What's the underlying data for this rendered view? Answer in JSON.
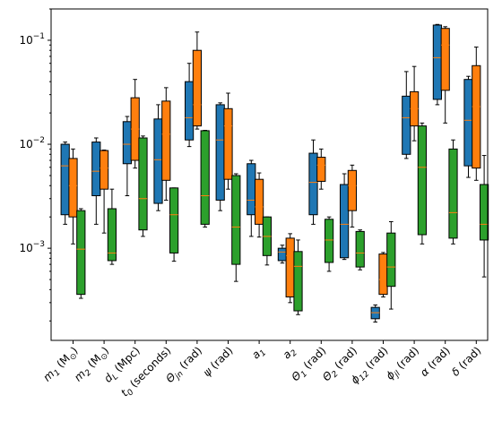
{
  "chart_data": {
    "type": "box",
    "yscale": "log",
    "ylim": [
      0.00013,
      0.2
    ],
    "y_tick_labels": [
      {
        "value": 0.001,
        "base": "10",
        "exp": "−3"
      },
      {
        "value": 0.01,
        "base": "10",
        "exp": "−2"
      },
      {
        "value": 0.1,
        "base": "10",
        "exp": "−1"
      }
    ],
    "categories": [
      {
        "main": "m",
        "sub": "1",
        "tail": " (M",
        "tailsub": "⊙",
        "end": ")"
      },
      {
        "main": "m",
        "sub": "2",
        "tail": " (M",
        "tailsub": "⊙",
        "end": ")"
      },
      {
        "main": "d",
        "sub": "L",
        "tail": " (Mpc)",
        "tailsub": "",
        "end": ""
      },
      {
        "main": "t",
        "sub": "0",
        "tail": " (seconds)",
        "tailsub": "",
        "end": ""
      },
      {
        "main": "Θ",
        "sub": "jn",
        "tail": " (rad)",
        "tailsub": "",
        "end": ""
      },
      {
        "main": "ψ",
        "sub": "",
        "tail": " (rad)",
        "tailsub": "",
        "end": ""
      },
      {
        "main": "a",
        "sub": "1",
        "tail": "",
        "tailsub": "",
        "end": ""
      },
      {
        "main": "a",
        "sub": "2",
        "tail": "",
        "tailsub": "",
        "end": ""
      },
      {
        "main": "Θ",
        "sub": "1",
        "tail": " (rad)",
        "tailsub": "",
        "end": ""
      },
      {
        "main": "Θ",
        "sub": "2",
        "tail": " (rad)",
        "tailsub": "",
        "end": ""
      },
      {
        "main": "ϕ",
        "sub": "12",
        "tail": " (rad)",
        "tailsub": "",
        "end": ""
      },
      {
        "main": "ϕ",
        "sub": "jl",
        "tail": " (rad)",
        "tailsub": "",
        "end": ""
      },
      {
        "main": "α",
        "sub": "",
        "tail": " (rad)",
        "tailsub": "",
        "end": ""
      },
      {
        "main": "δ",
        "sub": "",
        "tail": " (rad)",
        "tailsub": "",
        "end": ""
      }
    ],
    "series": [
      {
        "color": "#1f77b4",
        "boxes": [
          {
            "min": 0.0017,
            "q1": 0.0021,
            "median": 0.0062,
            "q3": 0.01,
            "max": 0.0105
          },
          {
            "min": 0.0017,
            "q1": 0.0032,
            "median": 0.0055,
            "q3": 0.0105,
            "max": 0.0115
          },
          {
            "min": 0.0032,
            "q1": 0.0065,
            "median": 0.01,
            "q3": 0.0165,
            "max": 0.0185
          },
          {
            "min": 0.0023,
            "q1": 0.0027,
            "median": 0.0071,
            "q3": 0.0175,
            "max": 0.024
          },
          {
            "min": 0.0095,
            "q1": 0.011,
            "median": 0.018,
            "q3": 0.04,
            "max": 0.06
          },
          {
            "min": 0.0023,
            "q1": 0.0029,
            "median": 0.011,
            "q3": 0.024,
            "max": 0.025
          },
          {
            "min": 0.0013,
            "q1": 0.0021,
            "median": 0.0029,
            "q3": 0.0065,
            "max": 0.007
          },
          {
            "min": 0.00072,
            "q1": 0.00076,
            "median": 0.00092,
            "q3": 0.001,
            "max": 0.00107
          },
          {
            "min": 0.0017,
            "q1": 0.0021,
            "median": 0.0043,
            "q3": 0.0082,
            "max": 0.011
          },
          {
            "min": 0.00078,
            "q1": 0.00081,
            "median": 0.0017,
            "q3": 0.0041,
            "max": 0.0052
          },
          {
            "min": 0.000195,
            "q1": 0.00021,
            "median": 0.00024,
            "q3": 0.00027,
            "max": 0.000285
          },
          {
            "min": 0.0073,
            "q1": 0.008,
            "median": 0.018,
            "q3": 0.029,
            "max": 0.05
          },
          {
            "min": 0.024,
            "q1": 0.027,
            "median": 0.068,
            "q3": 0.14,
            "max": 0.142
          },
          {
            "min": 0.0048,
            "q1": 0.0062,
            "median": 0.017,
            "q3": 0.042,
            "max": 0.045
          }
        ]
      },
      {
        "color": "#ff7f0e",
        "boxes": [
          {
            "min": 0.0011,
            "q1": 0.002,
            "median": 0.004,
            "q3": 0.0073,
            "max": 0.009
          },
          {
            "min": 0.0014,
            "q1": 0.0037,
            "median": 0.0059,
            "q3": 0.0087,
            "max": 0.0088
          },
          {
            "min": 0.0059,
            "q1": 0.007,
            "median": 0.014,
            "q3": 0.028,
            "max": 0.042
          },
          {
            "min": 0.0029,
            "q1": 0.0045,
            "median": 0.0125,
            "q3": 0.026,
            "max": 0.035
          },
          {
            "min": 0.014,
            "q1": 0.015,
            "median": 0.024,
            "q3": 0.08,
            "max": 0.12
          },
          {
            "min": 0.0037,
            "q1": 0.0046,
            "median": 0.015,
            "q3": 0.022,
            "max": 0.031
          },
          {
            "min": 0.00128,
            "q1": 0.0017,
            "median": 0.0025,
            "q3": 0.0046,
            "max": 0.0053
          },
          {
            "min": 0.0003,
            "q1": 0.00034,
            "median": 0.00085,
            "q3": 0.00125,
            "max": 0.00138
          },
          {
            "min": 0.0037,
            "q1": 0.0044,
            "median": 0.0063,
            "q3": 0.0075,
            "max": 0.009
          },
          {
            "min": 0.0016,
            "q1": 0.0023,
            "median": 0.004,
            "q3": 0.0056,
            "max": 0.0063
          },
          {
            "min": 0.00034,
            "q1": 0.00036,
            "median": 0.0005,
            "q3": 0.00088,
            "max": 0.00091
          },
          {
            "min": 0.0108,
            "q1": 0.015,
            "median": 0.022,
            "q3": 0.032,
            "max": 0.056
          },
          {
            "min": 0.016,
            "q1": 0.033,
            "median": 0.09,
            "q3": 0.13,
            "max": 0.135
          },
          {
            "min": 0.0045,
            "q1": 0.0059,
            "median": 0.023,
            "q3": 0.057,
            "max": 0.086
          }
        ]
      },
      {
        "color": "#2ca02c",
        "boxes": [
          {
            "min": 0.00033,
            "q1": 0.00036,
            "median": 0.00098,
            "q3": 0.0023,
            "max": 0.0024
          },
          {
            "min": 0.0007,
            "q1": 0.00076,
            "median": 0.0009,
            "q3": 0.0024,
            "max": 0.0037
          },
          {
            "min": 0.0013,
            "q1": 0.0015,
            "median": 0.003,
            "q3": 0.0115,
            "max": 0.012
          },
          {
            "min": 0.00075,
            "q1": 0.0009,
            "median": 0.0021,
            "q3": 0.0038,
            "max": 0.0038
          },
          {
            "min": 0.0016,
            "q1": 0.0017,
            "median": 0.0032,
            "q3": 0.0135,
            "max": 0.0136
          },
          {
            "min": 0.00048,
            "q1": 0.0007,
            "median": 0.0016,
            "q3": 0.005,
            "max": 0.0052
          },
          {
            "min": 0.00069,
            "q1": 0.00085,
            "median": 0.0013,
            "q3": 0.002,
            "max": 0.002
          },
          {
            "min": 0.00023,
            "q1": 0.00025,
            "median": 0.00067,
            "q3": 0.00093,
            "max": 0.0012
          },
          {
            "min": 0.0006,
            "q1": 0.00073,
            "median": 0.0012,
            "q3": 0.0019,
            "max": 0.002
          },
          {
            "min": 0.00062,
            "q1": 0.00066,
            "median": 0.0009,
            "q3": 0.00145,
            "max": 0.0015
          },
          {
            "min": 0.00026,
            "q1": 0.00043,
            "median": 0.00066,
            "q3": 0.0014,
            "max": 0.0018
          },
          {
            "min": 0.0011,
            "q1": 0.00135,
            "median": 0.006,
            "q3": 0.015,
            "max": 0.016
          },
          {
            "min": 0.0011,
            "q1": 0.00125,
            "median": 0.0022,
            "q3": 0.009,
            "max": 0.011
          },
          {
            "min": 0.00053,
            "q1": 0.0012,
            "median": 0.0017,
            "q3": 0.0041,
            "max": 0.0078
          }
        ]
      }
    ],
    "median_color": "#ff7f0e",
    "grid": false,
    "legend": "none"
  }
}
